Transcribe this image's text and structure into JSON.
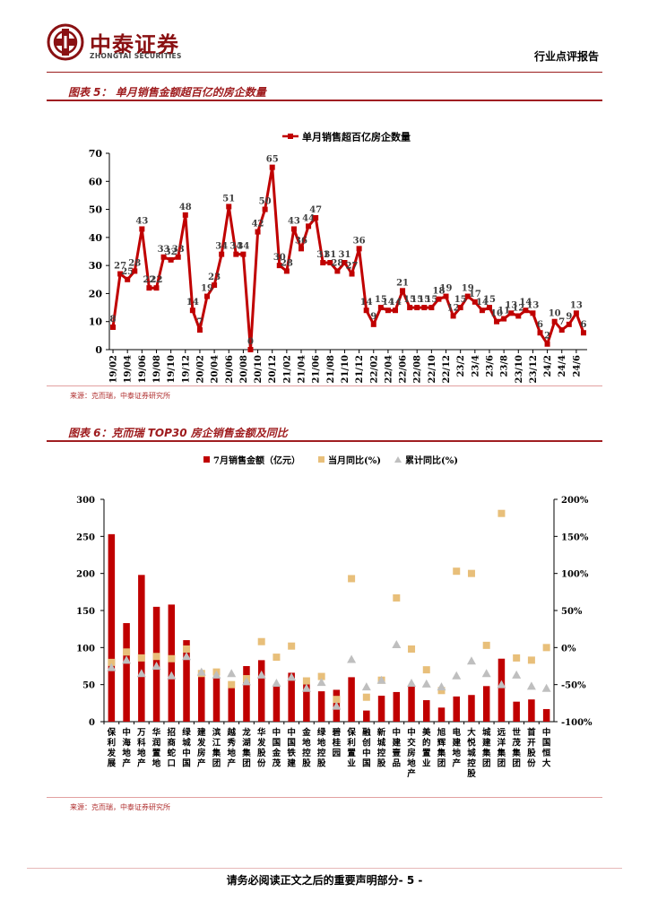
{
  "header": {
    "company_cn": "中泰证券",
    "company_en": "ZHONGTAI SECURITIES",
    "report_type": "行业点评报告"
  },
  "figure5": {
    "title": "图表 5： 单月销售金额超百亿的房企数量",
    "source": "来源：克而瑞，中泰证券研究所"
  },
  "figure6": {
    "title": "图表 6：克而瑞 TOP30 房企销售金额及同比",
    "source": "来源：克而瑞，中泰证券研究所"
  },
  "footer": {
    "disclaimer": "请务必阅读正文之后的重要声明部分",
    "page": "- 5 -"
  },
  "colors": {
    "brand": "#8a1113",
    "series_red": "#c00000",
    "series_tan": "#e8bf7a",
    "series_grey": "#bfbfbf"
  },
  "chart_data": [
    {
      "type": "line",
      "legend": [
        "单月销售超百亿房企数量"
      ],
      "series": [
        {
          "name": "单月销售超百亿房企数量",
          "values": [
            8,
            27,
            25,
            28,
            43,
            22,
            22,
            33,
            32,
            33,
            48,
            14,
            7,
            19,
            23,
            34,
            51,
            34,
            34,
            0,
            42,
            50,
            65,
            30,
            28,
            43,
            36,
            44,
            47,
            31,
            31,
            28,
            31,
            27,
            36,
            14,
            9,
            15,
            14,
            14,
            21,
            15,
            15,
            15,
            15,
            18,
            19,
            12,
            15,
            19,
            17,
            14,
            15,
            10,
            11,
            13,
            12,
            14,
            13,
            6,
            2,
            10,
            7,
            9,
            13,
            6
          ]
        }
      ],
      "x_tick_labels": [
        "19/02",
        "19/04",
        "19/06",
        "19/08",
        "19/10",
        "19/12",
        "20/02",
        "20/04",
        "20/06",
        "20/08",
        "20/10",
        "20/12",
        "21/02",
        "21/04",
        "21/06",
        "21/08",
        "21/10",
        "21/12",
        "22/02",
        "22/04",
        "22/06",
        "22/08",
        "22/10",
        "22/12",
        "23/2",
        "23/4",
        "23/6",
        "23/8",
        "23/10",
        "23/12",
        "24/2",
        "24/4",
        "24/6"
      ],
      "ylim": [
        0,
        70
      ],
      "y_ticks": [
        0,
        10,
        20,
        30,
        40,
        50,
        60,
        70
      ],
      "legend_position": "top"
    },
    {
      "type": "bar",
      "categories": [
        "保利发展",
        "中海地产",
        "万科地产",
        "华润置地",
        "招商蛇口",
        "绿城中国",
        "建发房产",
        "滨江集团",
        "越秀地产",
        "龙湖集团",
        "华发股份",
        "中国金茂",
        "中国铁建",
        "金地控股",
        "绿地控股",
        "碧桂园",
        "保利置业",
        "融创中国",
        "新城控股",
        "中建壹品",
        "中交房地产",
        "美的置业",
        "旭辉集团",
        "电建地产",
        "大悦城控股",
        "城建集团",
        "远洋集团",
        "世茂集团",
        "首开股份",
        "中国恒大"
      ],
      "legend": [
        "7月销售金额（亿元）",
        "当月同比(%)",
        "累计同比(%)"
      ],
      "series": [
        {
          "name": "7月销售金额（亿元）",
          "axis": "left",
          "values": [
            253,
            133,
            198,
            155,
            158,
            110,
            65,
            60,
            48,
            75,
            83,
            50,
            66,
            53,
            41,
            43,
            60,
            15,
            35,
            40,
            48,
            29,
            19,
            34,
            36,
            48,
            85,
            27,
            30,
            17
          ]
        },
        {
          "name": "当月同比(%)",
          "axis": "right",
          "values": [
            -20,
            -6,
            -14,
            -12,
            -15,
            -2,
            -35,
            -33,
            -50,
            -42,
            8,
            -13,
            2,
            -45,
            -39,
            -70,
            93,
            -67,
            -44,
            67,
            -2,
            -30,
            -58,
            103,
            100,
            3,
            181,
            -14,
            -17,
            0
          ]
        },
        {
          "name": "累计同比(%)",
          "axis": "right",
          "values": [
            -27,
            -17,
            -35,
            -25,
            -38,
            -12,
            -33,
            -37,
            -35,
            -46,
            -37,
            -48,
            -40,
            -55,
            -47,
            -79,
            -16,
            -53,
            -44,
            4,
            -48,
            -49,
            -53,
            -38,
            -18,
            -35,
            -50,
            -37,
            -52,
            -55
          ]
        }
      ],
      "ylim_left": [
        0,
        300
      ],
      "y_ticks_left": [
        0,
        50,
        100,
        150,
        200,
        250,
        300
      ],
      "ylim_right": [
        -100,
        200
      ],
      "y_ticks_right": [
        "-100%",
        "-50%",
        "0%",
        "50%",
        "100%",
        "150%",
        "200%"
      ],
      "legend_position": "top"
    }
  ]
}
